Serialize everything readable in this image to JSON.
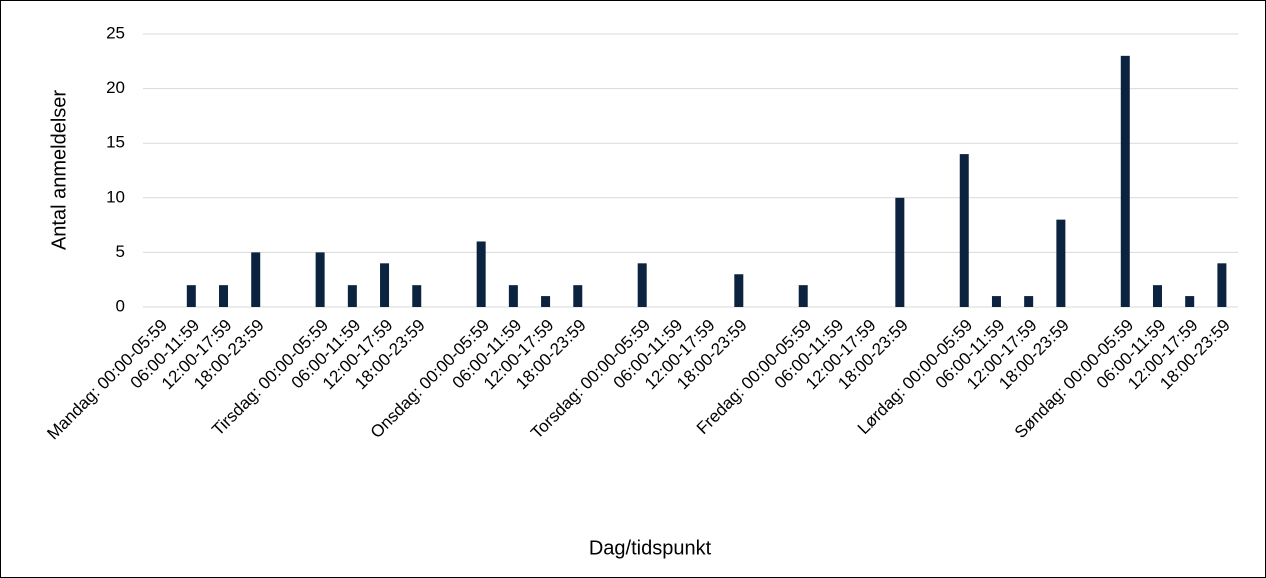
{
  "chart_data": {
    "type": "bar",
    "y_label": "Antal anmeldelser",
    "x_label": "Dag/tidspunkt",
    "categories": [
      "Mandag: 00:00-05:59",
      "06:00-11:59",
      "12:00-17:59",
      "18:00-23:59",
      null,
      "Tirsdag: 00:00-05:59",
      "06:00-11:59",
      "12:00-17:59",
      "18:00-23:59",
      null,
      "Onsdag: 00:00-05:59",
      "06:00-11:59",
      "12:00-17:59",
      "18:00-23:59",
      null,
      "Torsdag: 00:00-05:59",
      "06:00-11:59",
      "12:00-17:59",
      "18:00-23:59",
      null,
      "Fredag: 00:00-05:59",
      "06:00-11:59",
      "12:00-17:59",
      "18:00-23:59",
      null,
      "Lørdag: 00:00-05:59",
      "06:00-11:59",
      "12:00-17:59",
      "18:00-23:59",
      null,
      "Søndag: 00:00-05:59",
      "06:00-11:59",
      "12:00-17:59",
      "18:00-23:59"
    ],
    "values": [
      0,
      2,
      2,
      5,
      null,
      5,
      2,
      4,
      2,
      null,
      6,
      2,
      1,
      2,
      null,
      4,
      0,
      0,
      3,
      null,
      2,
      0,
      0,
      10,
      null,
      14,
      1,
      1,
      8,
      null,
      23,
      2,
      1,
      4
    ],
    "color": "#0c2340",
    "ylim": [
      0,
      25
    ],
    "yticks": [
      0,
      5,
      10,
      15,
      20,
      25
    ],
    "grid": true
  }
}
